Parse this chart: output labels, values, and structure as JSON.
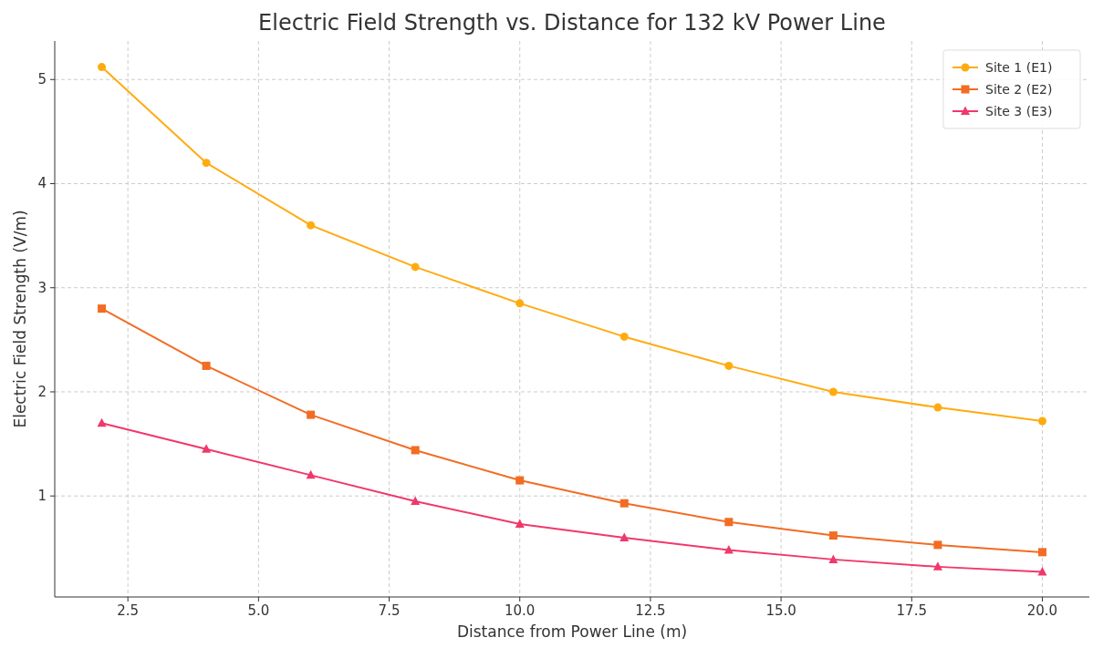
{
  "chart_data": {
    "type": "line",
    "title": "Electric Field Strength vs. Distance for 132 kV Power Line",
    "xlabel": "Distance from Power Line (m)",
    "ylabel": "Electric Field Strength (V/m)",
    "x": [
      2,
      4,
      6,
      8,
      10,
      12,
      14,
      16,
      18,
      20
    ],
    "series": [
      {
        "name": "Site 1 (E1)",
        "color": "#ffab0f",
        "marker": "circle",
        "values": [
          5.12,
          4.2,
          3.6,
          3.2,
          2.85,
          2.53,
          2.25,
          2.0,
          1.85,
          1.72
        ]
      },
      {
        "name": "Site 2 (E2)",
        "color": "#f26c23",
        "marker": "square",
        "values": [
          2.8,
          2.25,
          1.78,
          1.44,
          1.15,
          0.93,
          0.75,
          0.62,
          0.53,
          0.46
        ]
      },
      {
        "name": "Site 3 (E3)",
        "color": "#f0386b",
        "marker": "triangle",
        "values": [
          1.7,
          1.45,
          1.2,
          0.95,
          0.73,
          0.6,
          0.48,
          0.39,
          0.32,
          0.27
        ]
      }
    ],
    "xlim": [
      1.1,
      20.9
    ],
    "xticks": [
      {
        "value": 2.5,
        "label": "2.5"
      },
      {
        "value": 5,
        "label": "5.0"
      },
      {
        "value": 7.5,
        "label": "7.5"
      },
      {
        "value": 10,
        "label": "10.0"
      },
      {
        "value": 12.5,
        "label": "12.5"
      },
      {
        "value": 15,
        "label": "15.0"
      },
      {
        "value": 17.5,
        "label": "17.5"
      },
      {
        "value": 20,
        "label": "20.0"
      }
    ],
    "ylim": [
      0.03,
      5.37
    ],
    "yticks": [
      1,
      2,
      3,
      4,
      5
    ],
    "grid": true,
    "legend": "top right",
    "line_style": "solid"
  }
}
